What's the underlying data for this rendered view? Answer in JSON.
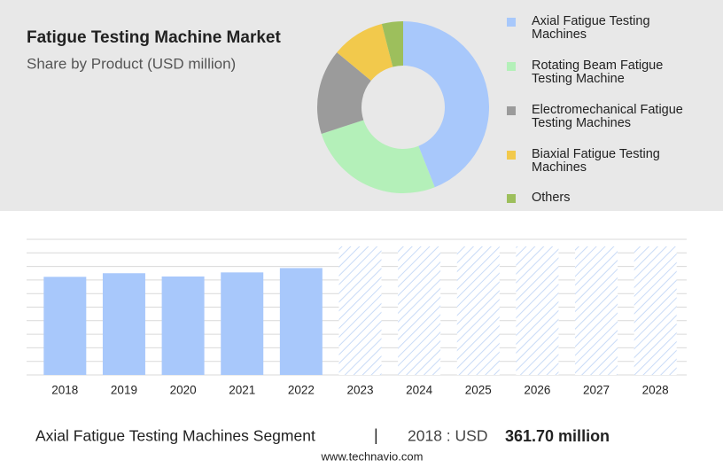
{
  "chart_data": [
    {
      "type": "donut",
      "title": "Fatigue Testing Machine Market",
      "subtitle": "Share by Product (USD million)",
      "categories": [
        "Axial Fatigue Testing Machines",
        "Rotating Beam Fatigue Testing Machine",
        "Electromechanical Fatigue Testing Machines",
        "Biaxial Fatigue Testing Machines",
        "Others"
      ],
      "values": [
        44,
        26,
        16,
        10,
        4
      ],
      "colors": [
        "#a8c8fb",
        "#b4f0b9",
        "#9b9b9b",
        "#f2c94c",
        "#9dbf5c"
      ]
    },
    {
      "type": "bar",
      "categories": [
        "2018",
        "2019",
        "2020",
        "2021",
        "2022",
        "2023",
        "2024",
        "2025",
        "2026",
        "2027",
        "2028"
      ],
      "values": [
        361.7,
        375,
        363,
        378,
        394,
        null,
        null,
        null,
        null,
        null,
        null
      ],
      "color": "#a8c8fb",
      "ylim": [
        0,
        500
      ],
      "yticks": [
        0,
        50,
        100,
        150,
        200,
        250,
        300,
        350,
        400,
        450,
        500
      ],
      "grid": true
    }
  ],
  "footer": {
    "segment": "Axial Fatigue Testing Machines Segment",
    "separator": "|",
    "year_label": "2018 : USD",
    "value_label": "361.70 million",
    "source": "www.technavio.com"
  }
}
